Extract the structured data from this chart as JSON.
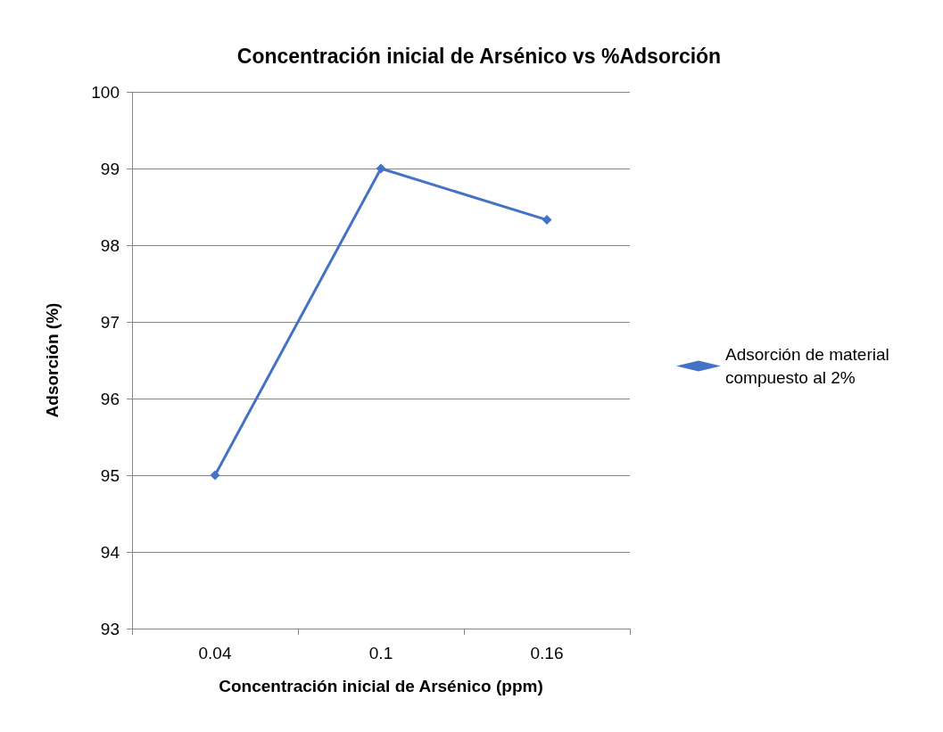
{
  "chart_data": {
    "type": "line",
    "title": "Concentración inicial de Arsénico vs %Adsorción",
    "xlabel": "Concentración inicial de Arsénico (ppm)",
    "ylabel": "Adsorción (%)",
    "categories": [
      "0.04",
      "0.1",
      "0.16"
    ],
    "series": [
      {
        "name": "Adsorción de material compuesto al 2%",
        "color": "#4472c4",
        "values": [
          95,
          99,
          98.33
        ]
      }
    ],
    "ylim": [
      93,
      100
    ],
    "yticks": [
      93,
      94,
      95,
      96,
      97,
      98,
      99,
      100
    ],
    "grid": "y",
    "legend": "right",
    "marker": "diamond",
    "line_style": "solid"
  }
}
